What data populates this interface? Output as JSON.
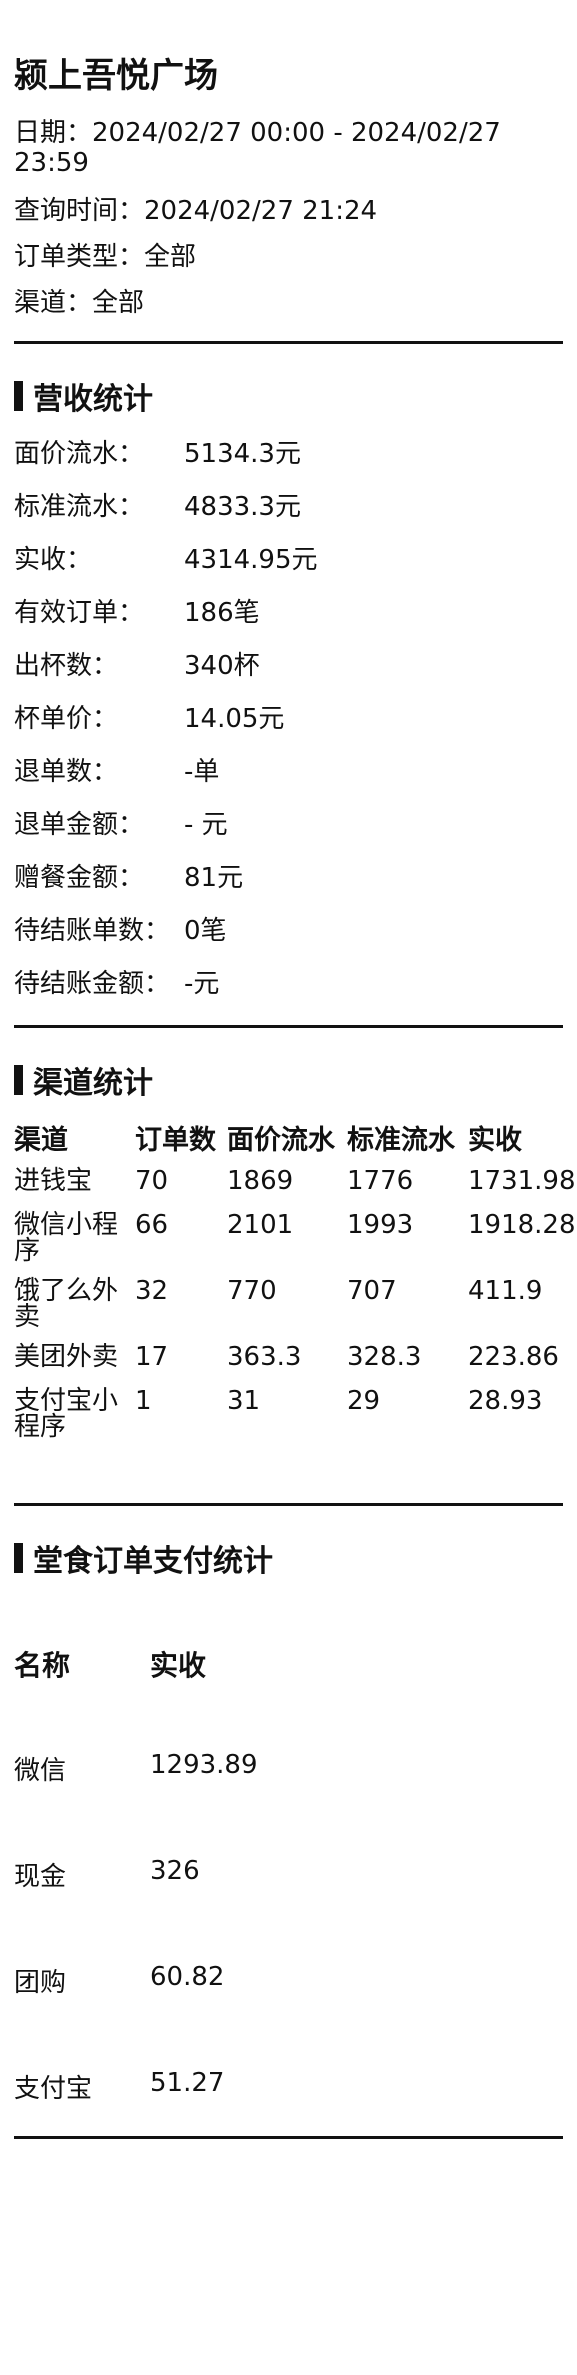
{
  "header": {
    "store_name": "颍上吾悦广场",
    "date_line": "日期：2024/02/27 00:00 - 2024/02/27 23:59",
    "query_time": "查询时间：2024/02/27 21:24",
    "order_type": "订单类型：全部",
    "channel": "渠道：全部"
  },
  "revenue": {
    "title": "营收统计",
    "items": [
      {
        "label": "面价流水：",
        "value": "5134.3元"
      },
      {
        "label": "标准流水：",
        "value": "4833.3元"
      },
      {
        "label": "实收：",
        "value": "4314.95元"
      },
      {
        "label": "有效订单：",
        "value": "186笔"
      },
      {
        "label": "出杯数：",
        "value": "340杯"
      },
      {
        "label": "杯单价：",
        "value": "14.05元"
      },
      {
        "label": "退单数：",
        "value": "-单"
      },
      {
        "label": "退单金额：",
        "value": "- 元"
      },
      {
        "label": "赠餐金额：",
        "value": "81元"
      },
      {
        "label": "待结账单数：",
        "value": "0笔"
      },
      {
        "label": "待结账金额：",
        "value": "-元"
      }
    ]
  },
  "channels": {
    "title": "渠道统计",
    "headers": [
      "渠道",
      "订单数",
      "面价流水",
      "标准流水",
      "实收"
    ],
    "rows": [
      [
        "进钱宝",
        "70",
        "1869",
        "1776",
        "1731.98"
      ],
      [
        "微信小程序",
        "66",
        "2101",
        "1993",
        "1918.28"
      ],
      [
        "饿了么外卖",
        "32",
        "770",
        "707",
        "411.9"
      ],
      [
        "美团外卖",
        "17",
        "363.3",
        "328.3",
        "223.86"
      ],
      [
        "支付宝小程序",
        "1",
        "31",
        "29",
        "28.93"
      ]
    ]
  },
  "dine_in_payment": {
    "title": "堂食订单支付统计",
    "headers": [
      "名称",
      "实收"
    ],
    "rows": [
      [
        "微信",
        "1293.89"
      ],
      [
        "现金",
        "326"
      ],
      [
        "团购",
        "60.82"
      ],
      [
        "支付宝",
        "51.27"
      ]
    ]
  }
}
